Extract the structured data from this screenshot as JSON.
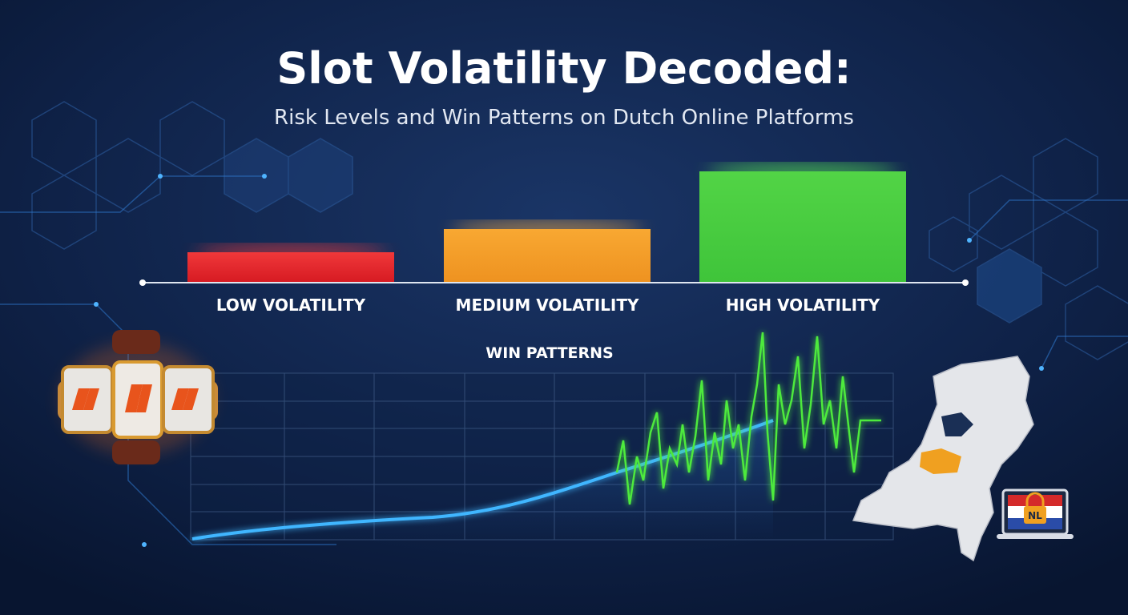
{
  "header": {
    "title": "Slot Volatility Decoded:",
    "subtitle": "Risk Levels and Win Patterns on Dutch Online Platforms"
  },
  "volatility_levels": [
    "LOW VOLATILITY",
    "MEDIUM VOLATILITY",
    "HIGH VOLATILITY"
  ],
  "win_patterns": {
    "title": "WIN PATTERNS"
  },
  "badge": {
    "label": "NL"
  }
}
